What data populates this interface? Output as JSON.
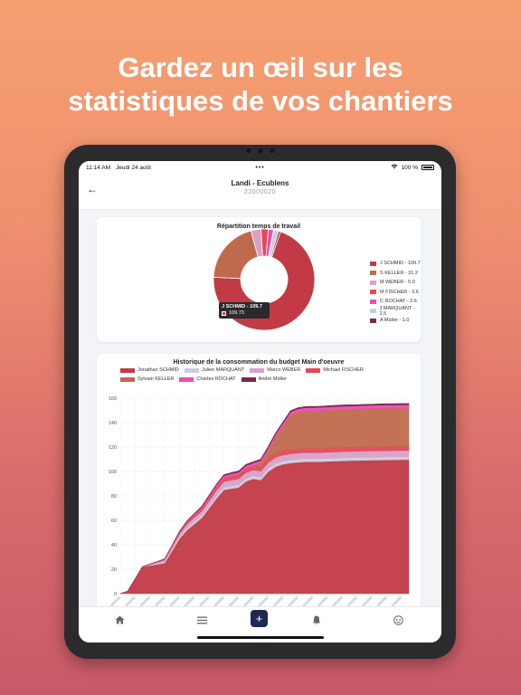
{
  "promo": {
    "line1": "Gardez un œil sur les",
    "line2": "statistiques de vos chantiers"
  },
  "status_bar": {
    "time": "11:14 AM",
    "date": "Jeudi 24 août",
    "dots": "•••",
    "battery": "100 %"
  },
  "header": {
    "title": "Landi - Ecublens",
    "subtitle": "22000020"
  },
  "colors": {
    "schmid": "#c23a46",
    "keller": "#c06a4d",
    "weber": "#d9a0c8",
    "fischer": "#e24a55",
    "rochat": "#ea4fb4",
    "marquant": "#c9cde0",
    "muller": "#7a2a4a",
    "accent": "#1d2a55"
  },
  "pie_card": {
    "title": "Répartition temps de travail",
    "tooltip": {
      "title": "J SCHMID - 109.7",
      "value": "109.73"
    },
    "legend": [
      {
        "label": "J SCHMID - 109.7",
        "color": "#c23a46"
      },
      {
        "label": "S KELLER - 31.2",
        "color": "#c06a4d"
      },
      {
        "label": "M WEBER - 5.0",
        "color": "#d9a0c8"
      },
      {
        "label": "M FISCHER - 3.6",
        "color": "#e24a55"
      },
      {
        "label": "C ROCHAT - 2.6",
        "color": "#ea4fb4"
      },
      {
        "label": "J MARQUANT - 2.5",
        "color": "#c9cde0"
      },
      {
        "label": "A Müller - 1.0",
        "color": "#7a2a4a"
      }
    ]
  },
  "area_card": {
    "title": "Historique de la consommation du budget Main d'oeuvre",
    "legend": [
      {
        "label": "Jonathan  SCHMID",
        "color": "#c23a46"
      },
      {
        "label": "Julien  MARQUANT",
        "color": "#c9cde0"
      },
      {
        "label": "Marco  WEBER",
        "color": "#d9a0c8"
      },
      {
        "label": "Michael  FISCHER",
        "color": "#e24a55"
      },
      {
        "label": "Sylvain  KELLER",
        "color": "#c06a4d"
      },
      {
        "label": "Charles  ROCHAT",
        "color": "#ea4fb4"
      },
      {
        "label": "André Müller",
        "color": "#7a2a4a"
      }
    ]
  },
  "chart_data": [
    {
      "type": "pie",
      "title": "Répartition temps de travail",
      "categories": [
        "J SCHMID",
        "S KELLER",
        "M WEBER",
        "M FISCHER",
        "C ROCHAT",
        "J MARQUANT",
        "A Müller"
      ],
      "values": [
        109.7,
        31.2,
        5.0,
        3.6,
        2.6,
        2.5,
        1.0
      ],
      "legend": "right"
    },
    {
      "type": "area",
      "title": "Historique de la consommation du budget Main d'oeuvre",
      "ylim": [
        0,
        160
      ],
      "yticks": [
        0,
        20,
        40,
        60,
        80,
        100,
        120,
        140,
        160
      ],
      "grid": true,
      "stacked": true,
      "legend": "top",
      "x_count": 40,
      "series": [
        {
          "name": "Jonathan  SCHMID",
          "values": [
            0,
            2,
            12,
            22,
            23,
            24,
            25,
            35,
            45,
            52,
            57,
            62,
            70,
            78,
            85,
            86,
            87,
            92,
            94,
            93,
            100,
            104,
            106,
            107,
            107.5,
            108,
            108,
            108,
            108.3,
            108.5,
            108.7,
            108.9,
            109,
            109.2,
            109.3,
            109.4,
            109.5,
            109.6,
            109.7,
            109.7
          ]
        },
        {
          "name": "Julien  MARQUANT",
          "values": [
            0,
            0,
            0,
            0,
            0.5,
            0.8,
            1,
            1.2,
            1.5,
            1.8,
            2,
            2,
            2.1,
            2.2,
            2.3,
            2.3,
            2.4,
            2.4,
            2.4,
            2.4,
            2.5,
            2.5,
            2.5,
            2.5,
            2.5,
            2.5,
            2.5,
            2.5,
            2.5,
            2.5,
            2.5,
            2.5,
            2.5,
            2.5,
            2.5,
            2.5,
            2.5,
            2.5,
            2.5,
            2.5
          ]
        },
        {
          "name": "Marco  WEBER",
          "values": [
            0,
            0,
            0,
            0,
            0.5,
            1,
            1.5,
            2,
            2.5,
            3,
            3.3,
            3.6,
            4,
            4.3,
            4.5,
            4.6,
            4.7,
            4.8,
            4.8,
            4.9,
            4.9,
            5,
            5,
            5,
            5,
            5,
            5,
            5,
            5,
            5,
            5,
            5,
            5,
            5,
            5,
            5,
            5,
            5,
            5,
            5
          ]
        },
        {
          "name": "Michael  FISCHER",
          "values": [
            0,
            0,
            0,
            0,
            0.2,
            0.5,
            0.8,
            1,
            1.3,
            1.6,
            1.9,
            2.2,
            2.5,
            2.8,
            3,
            3.2,
            3.3,
            3.4,
            3.5,
            3.5,
            3.6,
            3.6,
            3.6,
            3.6,
            3.6,
            3.6,
            3.6,
            3.6,
            3.6,
            3.6,
            3.6,
            3.6,
            3.6,
            3.6,
            3.6,
            3.6,
            3.6,
            3.6,
            3.6,
            3.6
          ]
        },
        {
          "name": "Sylvain  KELLER",
          "values": [
            0,
            0,
            0,
            0,
            0,
            0,
            0,
            0,
            0,
            0,
            0,
            0,
            0,
            0,
            0,
            0,
            0,
            0,
            0,
            3,
            6,
            13,
            20,
            28,
            30,
            30.5,
            30.6,
            30.7,
            30.8,
            30.9,
            31,
            31,
            31,
            31.1,
            31.1,
            31.2,
            31.2,
            31.2,
            31.2,
            31.2
          ]
        },
        {
          "name": "Charles  ROCHAT",
          "values": [
            0,
            0,
            0,
            0,
            0,
            0,
            0.2,
            0.4,
            0.6,
            0.8,
            1,
            1.2,
            1.4,
            1.6,
            1.8,
            2,
            2.1,
            2.2,
            2.3,
            2.4,
            2.5,
            2.5,
            2.6,
            2.6,
            2.6,
            2.6,
            2.6,
            2.6,
            2.6,
            2.6,
            2.6,
            2.6,
            2.6,
            2.6,
            2.6,
            2.6,
            2.6,
            2.6,
            2.6,
            2.6
          ]
        },
        {
          "name": "André Müller",
          "values": [
            0,
            0,
            0,
            0,
            0,
            0,
            0,
            0,
            0.2,
            0.3,
            0.4,
            0.5,
            0.6,
            0.7,
            0.8,
            0.9,
            1,
            1,
            1,
            1,
            1,
            1,
            1,
            1,
            1,
            1,
            1,
            1,
            1,
            1,
            1,
            1,
            1,
            1,
            1,
            1,
            1,
            1,
            1,
            1
          ]
        }
      ]
    }
  ]
}
